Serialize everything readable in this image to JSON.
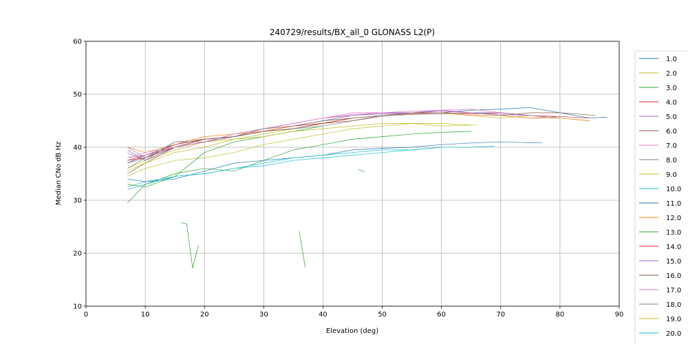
{
  "chart_data": {
    "type": "line",
    "title": "240729/results/BX_all_0 GLONASS L2(P)",
    "xlabel": "Elevation (deg)",
    "ylabel": "Median CNo dB Hz",
    "xlim": [
      0,
      90
    ],
    "ylim": [
      10,
      60
    ],
    "xticks": [
      0,
      10,
      20,
      30,
      40,
      50,
      60,
      70,
      80,
      90
    ],
    "yticks": [
      10,
      20,
      30,
      40,
      50,
      60
    ],
    "grid": true,
    "legend_position": "right",
    "series": [
      {
        "name": "1.0",
        "color": "#1f77b4",
        "x": [
          7,
          10,
          15,
          20,
          25,
          30,
          35,
          40,
          45,
          50,
          55,
          60,
          65,
          70,
          75,
          80,
          85,
          88
        ],
        "y": [
          37,
          38.5,
          40.5,
          41.5,
          42,
          43,
          44,
          45,
          45.5,
          46,
          46.5,
          46.5,
          47,
          47.2,
          47.5,
          46.5,
          45.5,
          45.7
        ]
      },
      {
        "name": "2.0",
        "color": "#bcbd22",
        "x": [
          7,
          10,
          15,
          20,
          25,
          30,
          35,
          40,
          45,
          50,
          55,
          60,
          65,
          70,
          75,
          80,
          85
        ],
        "y": [
          36,
          37.5,
          39.5,
          41,
          41.5,
          42.5,
          43.5,
          44.5,
          45.5,
          46,
          46.5,
          46.5,
          46,
          45.5,
          46,
          45.5,
          45
        ]
      },
      {
        "name": "3.0",
        "color": "#2ca02c",
        "x": [
          7,
          10,
          15,
          20,
          25,
          30,
          35,
          40,
          45,
          50,
          55,
          60,
          65
        ],
        "y": [
          29.5,
          33,
          35,
          36,
          35.5,
          37.5,
          39.5,
          40.5,
          41.5,
          42,
          42.5,
          42.8,
          43
        ]
      },
      {
        "name": "4.0",
        "color": "#d62728",
        "x": [
          7,
          10,
          15,
          20,
          25,
          30,
          35,
          40,
          45,
          50,
          55,
          60,
          65,
          70,
          75,
          80,
          85
        ],
        "y": [
          37.5,
          38.5,
          40,
          41,
          42,
          43,
          44,
          44.5,
          45.5,
          46,
          46.5,
          46.5,
          46.3,
          46.5,
          46,
          45.8,
          45.5
        ]
      },
      {
        "name": "5.0",
        "color": "#9467bd",
        "x": [
          7,
          10,
          15,
          20,
          25,
          30,
          35,
          40,
          45,
          50,
          55,
          60,
          65,
          70,
          75,
          80
        ],
        "y": [
          39,
          37.5,
          40,
          41,
          42,
          43.5,
          44,
          45,
          46,
          46.3,
          46.5,
          46.8,
          46.5,
          46.2,
          46,
          45.5
        ]
      },
      {
        "name": "6.0",
        "color": "#8c564b",
        "x": [
          7,
          10,
          15,
          20,
          25,
          30,
          35,
          40,
          45,
          50,
          55,
          60,
          65,
          70,
          75,
          80,
          86
        ],
        "y": [
          35,
          37,
          40,
          41.5,
          42,
          43,
          43.5,
          44.5,
          45.5,
          46,
          46.5,
          46.5,
          46,
          46,
          46.5,
          46.5,
          46
        ]
      },
      {
        "name": "7.0",
        "color": "#e377c2",
        "x": [
          7,
          10,
          15,
          20,
          25,
          30,
          35,
          40,
          45,
          50,
          55,
          60,
          65,
          70,
          75
        ],
        "y": [
          38,
          38.5,
          40,
          41,
          42.5,
          43.5,
          44.5,
          45.5,
          46.5,
          46.5,
          46.5,
          47,
          47.2,
          46.5,
          46
        ]
      },
      {
        "name": "8.0",
        "color": "#7f7f7f",
        "x": [
          7,
          10,
          15,
          20,
          25,
          30,
          35,
          40,
          45,
          50,
          55,
          60,
          65,
          70,
          75,
          80
        ],
        "y": [
          36,
          38,
          41,
          41.5,
          42,
          43,
          43.5,
          44,
          45,
          45.8,
          46.2,
          46.3,
          46.5,
          46,
          45.5,
          45.8
        ]
      },
      {
        "name": "9.0",
        "color": "#bcbd22",
        "x": [
          7,
          10,
          15,
          20,
          25,
          30,
          35,
          40,
          45,
          50,
          55,
          60,
          65
        ],
        "y": [
          34.5,
          36,
          37.5,
          38,
          39,
          40.5,
          41.5,
          42.5,
          43.5,
          44,
          44.5,
          44.5,
          44.2
        ]
      },
      {
        "name": "10.0",
        "color": "#17becf",
        "x": [
          7,
          10,
          15,
          20,
          25,
          30,
          35,
          40,
          45,
          50,
          55,
          60,
          65,
          69
        ],
        "y": [
          32.5,
          33.5,
          34.5,
          35,
          36,
          36.5,
          37.5,
          38,
          38.5,
          39,
          39.5,
          40,
          40,
          40.2
        ]
      },
      {
        "name": "11.0",
        "color": "#1f77b4",
        "x": [
          7,
          10,
          15,
          20,
          25,
          30,
          35,
          40,
          45,
          50,
          55,
          60,
          65,
          70,
          77
        ],
        "y": [
          34,
          33.5,
          34,
          35.5,
          37,
          37.5,
          38,
          38.5,
          39.5,
          39.8,
          40,
          40.5,
          40.8,
          41,
          40.8
        ]
      },
      {
        "name": "12.0",
        "color": "#ff7f0e",
        "x": [
          7,
          10,
          15,
          20,
          25,
          30,
          35,
          40,
          45,
          50,
          55,
          60,
          65,
          70,
          75,
          80,
          85
        ],
        "y": [
          40,
          39,
          40.5,
          42,
          42.5,
          43,
          44,
          45,
          45.5,
          46,
          46.5,
          46.5,
          46,
          46,
          45.5,
          45.5,
          45
        ]
      },
      {
        "name": "13.0",
        "color": "#2ca02c",
        "x": [
          7,
          10,
          15,
          20,
          25,
          30,
          35,
          40
        ],
        "y": [
          33,
          32.5,
          34.5,
          39,
          41,
          42,
          43,
          44
        ]
      },
      {
        "name": "14.0",
        "color": "#d62728",
        "x": [
          7,
          10,
          15,
          20,
          25,
          30,
          35,
          40,
          45,
          50,
          55,
          60
        ],
        "y": [
          37.5,
          38,
          40.5,
          41.5,
          42,
          43.5,
          44,
          44.5,
          45.5,
          46,
          46.3,
          46.5
        ]
      },
      {
        "name": "15.0",
        "color": "#9467bd",
        "x": [
          7,
          10,
          15,
          20,
          25,
          30,
          35,
          40,
          45,
          50,
          55,
          60,
          65,
          70,
          75
        ],
        "y": [
          40,
          38,
          40,
          41,
          42.5,
          43.5,
          44.5,
          45.5,
          46,
          46.5,
          46.5,
          47,
          46.5,
          46.5,
          46
        ]
      },
      {
        "name": "16.0",
        "color": "#8c564b",
        "x": [
          7,
          10,
          15,
          20,
          25,
          30,
          35,
          40,
          45,
          50,
          55
        ],
        "y": [
          37,
          38,
          40,
          41.5,
          42,
          43,
          43.5,
          44.5,
          45,
          46,
          46.5
        ]
      },
      {
        "name": "17.0",
        "color": "#e377c2",
        "x": [
          7,
          10,
          15,
          20,
          25,
          30,
          35,
          40,
          45,
          50,
          55,
          60,
          65
        ],
        "y": [
          38,
          39,
          40,
          41,
          42.5,
          43.5,
          44.5,
          45.5,
          46.2,
          46.5,
          46.8,
          47,
          46.5
        ]
      },
      {
        "name": "18.0",
        "color": "#7f7f7f",
        "x": [
          7,
          10,
          15,
          20,
          25,
          30,
          35,
          40,
          45,
          50,
          55,
          60
        ],
        "y": [
          39.5,
          37.5,
          41,
          41,
          42,
          43.5,
          44,
          45,
          45.5,
          46,
          46.5,
          46.5
        ]
      },
      {
        "name": "19.0",
        "color": "#bcbd22",
        "x": [
          7,
          10,
          15,
          20,
          25,
          30,
          35,
          40,
          45,
          50,
          55,
          60,
          66
        ],
        "y": [
          35.5,
          37,
          39,
          40,
          41.5,
          42,
          43,
          43.5,
          44,
          44.5,
          44.5,
          44,
          44.2
        ]
      },
      {
        "name": "20.0",
        "color": "#17becf",
        "x": [
          7,
          10,
          15,
          20,
          25,
          30,
          35,
          40,
          45,
          50,
          55,
          60
        ],
        "y": [
          32,
          33,
          34.5,
          35,
          36,
          37,
          38,
          38.5,
          39,
          39.5,
          39.5,
          40
        ]
      }
    ],
    "fragments": [
      {
        "color": "#2ca02c",
        "x": [
          16,
          17,
          18,
          19
        ],
        "y": [
          25.8,
          25.5,
          17.2,
          21.5
        ]
      },
      {
        "color": "#2ca02c",
        "x": [
          36,
          37
        ],
        "y": [
          24.2,
          17.3
        ]
      },
      {
        "color": "#2ca02c",
        "x": [
          46,
          47
        ],
        "y": [
          35.8,
          35.3
        ]
      }
    ]
  }
}
